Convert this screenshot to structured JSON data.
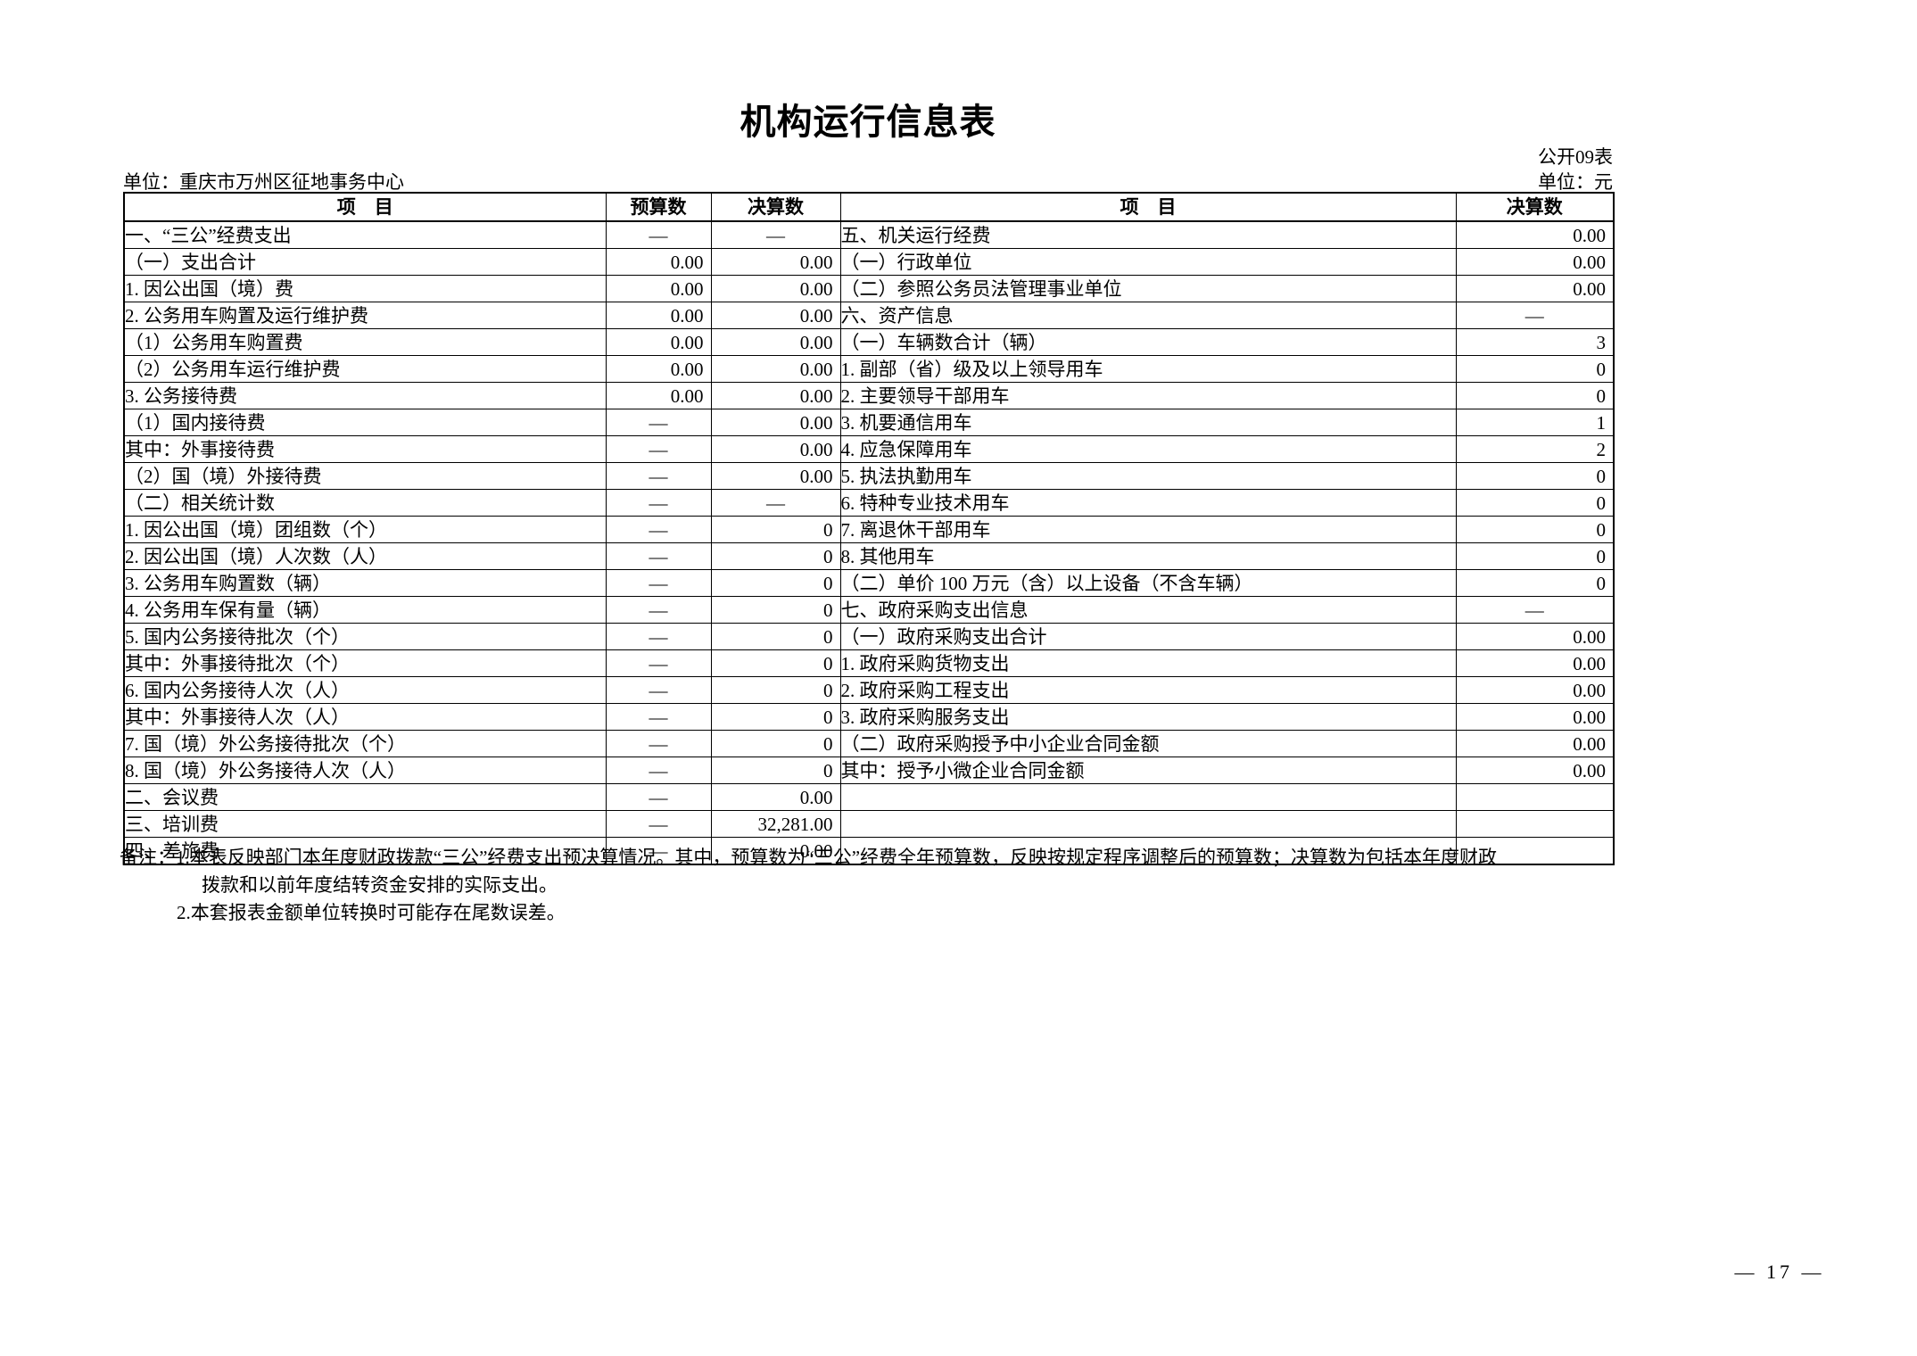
{
  "document": {
    "title": "机构运行信息表",
    "form_code": "公开09表",
    "unit_name": "单位：重庆市万州区征地事务中心",
    "amount_unit": "单位：元",
    "page_number": "— 17 —"
  },
  "table": {
    "headers": {
      "item_left": "项　目",
      "budget": "预算数",
      "final": "决算数",
      "item_right": "项　目",
      "final_right": "决算数"
    },
    "left_rows": [
      {
        "label": "一、“三公”经费支出",
        "indent": 0,
        "budget": "—",
        "final": "—"
      },
      {
        "label": "（一）支出合计",
        "indent": 1,
        "budget": "0.00",
        "final": "0.00"
      },
      {
        "label": "1. 因公出国（境）费",
        "indent": 2,
        "budget": "0.00",
        "final": "0.00"
      },
      {
        "label": "2. 公务用车购置及运行维护费",
        "indent": 2,
        "budget": "0.00",
        "final": "0.00"
      },
      {
        "label": "（1）公务用车购置费",
        "indent": 3,
        "budget": "0.00",
        "final": "0.00"
      },
      {
        "label": "（2）公务用车运行维护费",
        "indent": 3,
        "budget": "0.00",
        "final": "0.00"
      },
      {
        "label": "3. 公务接待费",
        "indent": 2,
        "budget": "0.00",
        "final": "0.00"
      },
      {
        "label": "（1）国内接待费",
        "indent": 3,
        "budget": "—",
        "final": "0.00"
      },
      {
        "label": "其中：外事接待费",
        "indent": 5,
        "budget": "—",
        "final": "0.00"
      },
      {
        "label": "（2）国（境）外接待费",
        "indent": 3,
        "budget": "—",
        "final": "0.00"
      },
      {
        "label": "（二）相关统计数",
        "indent": 1,
        "budget": "—",
        "final": "—"
      },
      {
        "label": "1. 因公出国（境）团组数（个）",
        "indent": 2,
        "budget": "—",
        "final": "0"
      },
      {
        "label": "2. 因公出国（境）人次数（人）",
        "indent": 2,
        "budget": "—",
        "final": "0"
      },
      {
        "label": "3. 公务用车购置数（辆）",
        "indent": 2,
        "budget": "—",
        "final": "0"
      },
      {
        "label": "4. 公务用车保有量（辆）",
        "indent": 2,
        "budget": "—",
        "final": "0"
      },
      {
        "label": "5. 国内公务接待批次（个）",
        "indent": 2,
        "budget": "—",
        "final": "0"
      },
      {
        "label": "其中：外事接待批次（个）",
        "indent": 4,
        "budget": "—",
        "final": "0"
      },
      {
        "label": "6. 国内公务接待人次（人）",
        "indent": 2,
        "budget": "—",
        "final": "0"
      },
      {
        "label": "其中：外事接待人次（人）",
        "indent": 4,
        "budget": "—",
        "final": "0"
      },
      {
        "label": "7. 国（境）外公务接待批次（个）",
        "indent": 2,
        "budget": "—",
        "final": "0"
      },
      {
        "label": "8. 国（境）外公务接待人次（人）",
        "indent": 2,
        "budget": "—",
        "final": "0"
      },
      {
        "label": "二、会议费",
        "indent": 0,
        "budget": "—",
        "final": "0.00"
      },
      {
        "label": "三、培训费",
        "indent": 0,
        "budget": "—",
        "final": "32,281.00"
      },
      {
        "label": "四、差旅费",
        "indent": 0,
        "budget": "—",
        "final": "0.00"
      }
    ],
    "right_rows": [
      {
        "label": "五、机关运行经费",
        "indent": 0,
        "final": "0.00"
      },
      {
        "label": "（一）行政单位",
        "indent": 1,
        "final": "0.00"
      },
      {
        "label": "（二）参照公务员法管理事业单位",
        "indent": 1,
        "final": "0.00"
      },
      {
        "label": "六、资产信息",
        "indent": 0,
        "final": "—"
      },
      {
        "label": "（一）车辆数合计（辆）",
        "indent": 1,
        "final": "3"
      },
      {
        "label": "1. 副部（省）级及以上领导用车",
        "indent": 2,
        "final": "0"
      },
      {
        "label": "2. 主要领导干部用车",
        "indent": 2,
        "final": "0"
      },
      {
        "label": "3. 机要通信用车",
        "indent": 2,
        "final": "1"
      },
      {
        "label": "4. 应急保障用车",
        "indent": 2,
        "final": "2"
      },
      {
        "label": "5. 执法执勤用车",
        "indent": 2,
        "final": "0"
      },
      {
        "label": "6. 特种专业技术用车",
        "indent": 2,
        "final": "0"
      },
      {
        "label": "7. 离退休干部用车",
        "indent": 2,
        "final": "0"
      },
      {
        "label": "8. 其他用车",
        "indent": 2,
        "final": "0"
      },
      {
        "label": "（二）单价 100 万元（含）以上设备（不含车辆）",
        "indent": 1,
        "final": "0"
      },
      {
        "label": "七、政府采购支出信息",
        "indent": 0,
        "final": "—"
      },
      {
        "label": "（一）政府采购支出合计",
        "indent": 1,
        "final": "0.00"
      },
      {
        "label": "1. 政府采购货物支出",
        "indent": 2,
        "final": "0.00"
      },
      {
        "label": "2. 政府采购工程支出",
        "indent": 2,
        "final": "0.00"
      },
      {
        "label": "3. 政府采购服务支出",
        "indent": 2,
        "final": "0.00"
      },
      {
        "label": "（二）政府采购授予中小企业合同金额",
        "indent": 1,
        "final": "0.00"
      },
      {
        "label": "其中：授予小微企业合同金额",
        "indent": 5,
        "final": "0.00"
      },
      {
        "label": "",
        "indent": 0,
        "final": ""
      },
      {
        "label": "",
        "indent": 0,
        "final": ""
      },
      {
        "label": "",
        "indent": 0,
        "final": ""
      }
    ]
  },
  "notes": {
    "line1": "备注：1.本表反映部门本年度财政拨款“三公”经费支出预决算情况。其中，预算数为“三公”经费全年预算数，反映按规定程序调整后的预算数；决算数为包括本年度财政",
    "line2": "拨款和以前年度结转资金安排的实际支出。",
    "line3": "2.本套报表金额单位转换时可能存在尾数误差。"
  }
}
